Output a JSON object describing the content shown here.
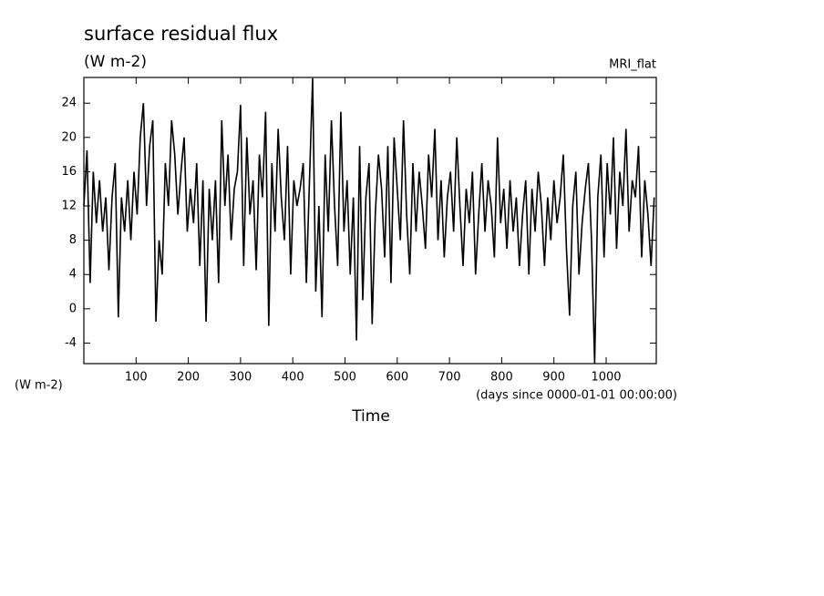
{
  "chart_data": {
    "type": "line",
    "title": "surface residual flux",
    "subtitle": "(W m-2)",
    "annotation": "MRI_flat",
    "y_label": "(W m-2)",
    "x_unit": "(days since 0000-01-01 00:00:00)",
    "x_label": "Time",
    "xlim": [
      0,
      1096
    ],
    "ylim": [
      -6.4,
      27
    ],
    "xticks": [
      100,
      200,
      300,
      400,
      500,
      600,
      700,
      800,
      900,
      1000
    ],
    "yticks": [
      -4,
      0,
      4,
      8,
      12,
      16,
      20,
      24
    ],
    "x": [
      0,
      6,
      12,
      18,
      24,
      30,
      36,
      42,
      48,
      54,
      60,
      66,
      72,
      78,
      84,
      90,
      96,
      102,
      108,
      114,
      120,
      126,
      132,
      138,
      144,
      150,
      156,
      162,
      168,
      174,
      180,
      186,
      192,
      198,
      204,
      210,
      216,
      222,
      228,
      234,
      240,
      246,
      252,
      258,
      264,
      270,
      276,
      282,
      288,
      294,
      300,
      306,
      312,
      318,
      324,
      330,
      336,
      342,
      348,
      354,
      360,
      366,
      372,
      378,
      384,
      390,
      396,
      402,
      408,
      414,
      420,
      426,
      432,
      438,
      444,
      450,
      456,
      462,
      468,
      474,
      480,
      486,
      492,
      498,
      504,
      510,
      516,
      522,
      528,
      534,
      540,
      546,
      552,
      558,
      564,
      570,
      576,
      582,
      588,
      594,
      600,
      606,
      612,
      618,
      624,
      630,
      636,
      642,
      648,
      654,
      660,
      666,
      672,
      678,
      684,
      690,
      696,
      702,
      708,
      714,
      720,
      726,
      732,
      738,
      744,
      750,
      756,
      762,
      768,
      774,
      780,
      786,
      792,
      798,
      804,
      810,
      816,
      822,
      828,
      834,
      840,
      846,
      852,
      858,
      864,
      870,
      876,
      882,
      888,
      894,
      900,
      906,
      912,
      918,
      924,
      930,
      936,
      942,
      948,
      954,
      960,
      966,
      972,
      978,
      984,
      990,
      996,
      1002,
      1008,
      1014,
      1020,
      1026,
      1032,
      1038,
      1044,
      1050,
      1056,
      1062,
      1068,
      1074,
      1080,
      1086,
      1092
    ],
    "series": [
      {
        "name": "surface residual flux",
        "color": "#000000",
        "values": [
          12,
          18.5,
          3,
          16,
          10,
          15,
          9,
          13,
          4.5,
          13,
          17,
          -1,
          13,
          9,
          15,
          8,
          16,
          11,
          20,
          24,
          12,
          19,
          22,
          -1.5,
          8,
          4,
          17,
          12,
          22,
          18,
          11,
          16,
          20,
          9,
          14,
          10,
          17,
          5,
          15,
          -1.5,
          14,
          8,
          15,
          3,
          22,
          12,
          18,
          8,
          14,
          16,
          23.8,
          5,
          20,
          11,
          15,
          4.5,
          18,
          13,
          23,
          -2,
          17,
          9,
          21,
          13,
          8,
          19,
          4,
          15,
          12,
          14,
          17,
          3,
          15,
          26.9,
          2,
          12,
          -1,
          18,
          9,
          22,
          12,
          5,
          23,
          9,
          15,
          4,
          13,
          -3.7,
          19,
          1,
          13,
          17,
          -1.8,
          11,
          18,
          14,
          6,
          19,
          3,
          20,
          14,
          8,
          22,
          11,
          4,
          17,
          9,
          16,
          12,
          7,
          18,
          13,
          21,
          8,
          15,
          6,
          13,
          16,
          9,
          20,
          12,
          5,
          14,
          10,
          16,
          4,
          11,
          17,
          9,
          15,
          12,
          6,
          20,
          10,
          14,
          7,
          15,
          9,
          13,
          5,
          11,
          15,
          4,
          14,
          9,
          16,
          12,
          5,
          13,
          8,
          15,
          10,
          13,
          18,
          7,
          -0.8,
          12,
          16,
          4,
          10,
          14,
          17,
          8,
          -6.4,
          13,
          18,
          6,
          17,
          11,
          20,
          7,
          16,
          12,
          21,
          9,
          15,
          13,
          19,
          6,
          15,
          11,
          5,
          13
        ]
      }
    ]
  }
}
